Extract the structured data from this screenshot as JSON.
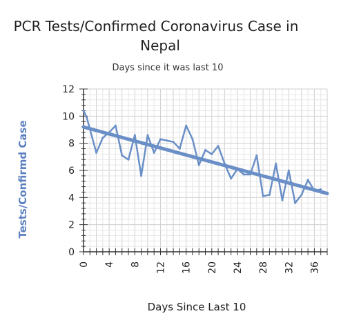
{
  "chart_data": {
    "type": "line",
    "title_line1": "PCR Tests/Confirmed Coronavirus Case in",
    "title_line2": "Nepal",
    "subtitle": "Days since it was last 10",
    "xlabel": "Days Since Last 10",
    "ylabel": "Tests/Confirmd Case",
    "xlim": [
      0,
      38
    ],
    "ylim": [
      0,
      12
    ],
    "x_ticks": [
      "0",
      "4",
      "8",
      "12",
      "16",
      "20",
      "24",
      "28",
      "32",
      "36"
    ],
    "y_ticks": [
      "0",
      "2",
      "4",
      "6",
      "8",
      "10",
      "12"
    ],
    "grid": true,
    "colors": {
      "series": "#6a8fc7",
      "trend": "#6a8fc7",
      "ylabel": "#5b7fc0"
    },
    "x": [
      0,
      0.5,
      2,
      3,
      4,
      5,
      6,
      7,
      8,
      9,
      10,
      11,
      12,
      13,
      14,
      15,
      16,
      17,
      18,
      19,
      20,
      21,
      22,
      23,
      24,
      25,
      26,
      27,
      28,
      29,
      30,
      31,
      32,
      33,
      34,
      35,
      36,
      37
    ],
    "series": [
      {
        "values": [
          10.4,
          9.9,
          7.3,
          8.4,
          8.8,
          9.3,
          7.1,
          6.8,
          8.6,
          5.6,
          8.6,
          7.3,
          8.3,
          8.2,
          8.1,
          7.6,
          9.3,
          8.3,
          6.4,
          7.5,
          7.2,
          7.8,
          6.5,
          5.4,
          6.1,
          5.7,
          5.7,
          7.1,
          4.1,
          4.2,
          6.5,
          3.8,
          6.0,
          3.6,
          4.2,
          5.3,
          4.5,
          4.6
        ]
      },
      {
        "type": "trendline",
        "start": [
          0,
          9.2
        ],
        "end": [
          38,
          4.3
        ]
      }
    ]
  }
}
